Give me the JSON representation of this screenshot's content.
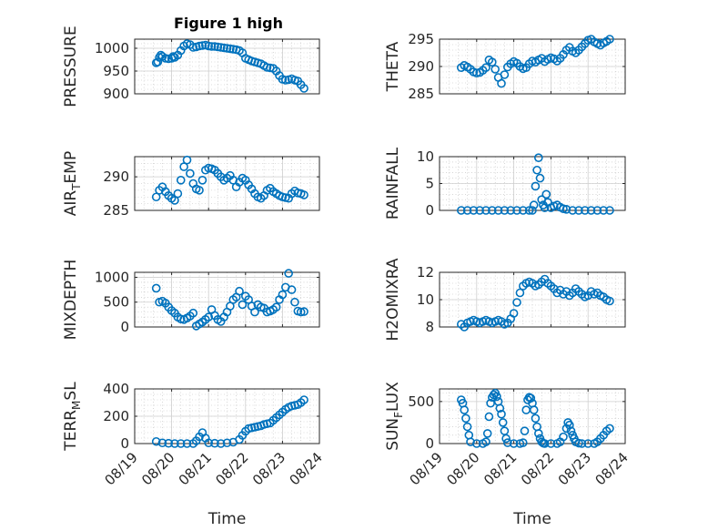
{
  "figure": {
    "title": "Figure 1 high",
    "marker_color": "#0072BD",
    "axis_color": "#262626",
    "grid": true,
    "minor_grid": true
  },
  "x_axis": {
    "type": "date",
    "lim": [
      "08/19",
      "08/24"
    ],
    "ticks": [
      "08/19",
      "08/20",
      "08/21",
      "08/22",
      "08/23",
      "08/24"
    ],
    "label": "Time"
  },
  "chart_data": [
    {
      "type": "scatter",
      "ylabel": "PRESSURE",
      "ylim": [
        900,
        1020
      ],
      "yticks": [
        900,
        950,
        1000
      ],
      "x": [
        "2023-08-19T14:00",
        "2023-08-19T15:00",
        "2023-08-19T16:00",
        "2023-08-19T17:00",
        "2023-08-19T18:00",
        "2023-08-19T20:00",
        "2023-08-19T22:00",
        "2023-08-20T00:00",
        "2023-08-20T01:00",
        "2023-08-20T02:00",
        "2023-08-20T04:00",
        "2023-08-20T06:00",
        "2023-08-20T08:00",
        "2023-08-20T10:00",
        "2023-08-20T12:00",
        "2023-08-20T14:00",
        "2023-08-20T16:00",
        "2023-08-20T18:00",
        "2023-08-20T20:00",
        "2023-08-20T22:00",
        "2023-08-21T00:00",
        "2023-08-21T02:00",
        "2023-08-21T04:00",
        "2023-08-21T06:00",
        "2023-08-21T08:00",
        "2023-08-21T10:00",
        "2023-08-21T12:00",
        "2023-08-21T14:00",
        "2023-08-21T16:00",
        "2023-08-21T18:00",
        "2023-08-21T20:00",
        "2023-08-21T22:00",
        "2023-08-22T00:00",
        "2023-08-22T02:00",
        "2023-08-22T04:00",
        "2023-08-22T06:00",
        "2023-08-22T08:00",
        "2023-08-22T10:00",
        "2023-08-22T12:00",
        "2023-08-22T14:00",
        "2023-08-22T16:00",
        "2023-08-22T18:00",
        "2023-08-22T20:00",
        "2023-08-22T22:00",
        "2023-08-23T00:00",
        "2023-08-23T02:00",
        "2023-08-23T04:00",
        "2023-08-23T06:00",
        "2023-08-23T08:00",
        "2023-08-23T10:00",
        "2023-08-23T12:00",
        "2023-08-23T14:00"
      ],
      "y": [
        968,
        970,
        980,
        985,
        982,
        978,
        977,
        978,
        982,
        980,
        985,
        995,
        1005,
        1010,
        1008,
        1002,
        1003,
        1005,
        1006,
        1007,
        1005,
        1004,
        1004,
        1003,
        1002,
        1001,
        1000,
        999,
        998,
        997,
        995,
        990,
        978,
        975,
        972,
        970,
        968,
        966,
        962,
        958,
        957,
        956,
        950,
        940,
        932,
        930,
        931,
        933,
        930,
        928,
        920,
        912
      ]
    },
    {
      "type": "scatter",
      "ylabel": "THETA",
      "ylim": [
        285,
        295
      ],
      "yticks": [
        285,
        290,
        295
      ],
      "x": [
        "2023-08-19T14:00",
        "2023-08-19T16:00",
        "2023-08-19T18:00",
        "2023-08-19T20:00",
        "2023-08-19T22:00",
        "2023-08-20T00:00",
        "2023-08-20T02:00",
        "2023-08-20T04:00",
        "2023-08-20T06:00",
        "2023-08-20T08:00",
        "2023-08-20T10:00",
        "2023-08-20T12:00",
        "2023-08-20T14:00",
        "2023-08-20T16:00",
        "2023-08-20T18:00",
        "2023-08-20T20:00",
        "2023-08-20T22:00",
        "2023-08-21T00:00",
        "2023-08-21T02:00",
        "2023-08-21T04:00",
        "2023-08-21T06:00",
        "2023-08-21T08:00",
        "2023-08-21T10:00",
        "2023-08-21T12:00",
        "2023-08-21T14:00",
        "2023-08-21T16:00",
        "2023-08-21T18:00",
        "2023-08-21T20:00",
        "2023-08-21T22:00",
        "2023-08-22T00:00",
        "2023-08-22T02:00",
        "2023-08-22T04:00",
        "2023-08-22T06:00",
        "2023-08-22T08:00",
        "2023-08-22T10:00",
        "2023-08-22T12:00",
        "2023-08-22T14:00",
        "2023-08-22T16:00",
        "2023-08-22T18:00",
        "2023-08-22T20:00",
        "2023-08-22T22:00",
        "2023-08-23T00:00",
        "2023-08-23T02:00",
        "2023-08-23T04:00",
        "2023-08-23T06:00",
        "2023-08-23T08:00",
        "2023-08-23T10:00",
        "2023-08-23T12:00",
        "2023-08-23T14:00"
      ],
      "y": [
        289.8,
        290.2,
        289.9,
        289.5,
        289.0,
        288.8,
        288.9,
        289.3,
        289.8,
        291.2,
        290.8,
        289.5,
        288.0,
        286.9,
        288.5,
        289.9,
        290.5,
        290.9,
        290.6,
        290.0,
        289.6,
        289.8,
        290.5,
        291.0,
        290.8,
        291.2,
        291.5,
        290.9,
        291.3,
        291.6,
        291.4,
        291.0,
        291.5,
        292.2,
        293.0,
        293.5,
        292.8,
        292.5,
        293.0,
        293.6,
        294.2,
        294.8,
        295.0,
        294.5,
        294.2,
        293.9,
        294.3,
        294.6,
        295.0
      ]
    },
    {
      "type": "scatter",
      "ylabel": "AIR_TEMP",
      "ylim": [
        285,
        293
      ],
      "yticks": [
        285,
        290
      ],
      "x": [
        "2023-08-19T14:00",
        "2023-08-19T16:00",
        "2023-08-19T18:00",
        "2023-08-19T20:00",
        "2023-08-19T22:00",
        "2023-08-20T00:00",
        "2023-08-20T02:00",
        "2023-08-20T04:00",
        "2023-08-20T06:00",
        "2023-08-20T08:00",
        "2023-08-20T10:00",
        "2023-08-20T12:00",
        "2023-08-20T14:00",
        "2023-08-20T16:00",
        "2023-08-20T18:00",
        "2023-08-20T20:00",
        "2023-08-20T22:00",
        "2023-08-21T00:00",
        "2023-08-21T02:00",
        "2023-08-21T04:00",
        "2023-08-21T06:00",
        "2023-08-21T08:00",
        "2023-08-21T10:00",
        "2023-08-21T12:00",
        "2023-08-21T14:00",
        "2023-08-21T16:00",
        "2023-08-21T18:00",
        "2023-08-21T20:00",
        "2023-08-21T22:00",
        "2023-08-22T00:00",
        "2023-08-22T02:00",
        "2023-08-22T04:00",
        "2023-08-22T06:00",
        "2023-08-22T08:00",
        "2023-08-22T10:00",
        "2023-08-22T12:00",
        "2023-08-22T14:00",
        "2023-08-22T16:00",
        "2023-08-22T18:00",
        "2023-08-22T20:00",
        "2023-08-22T22:00",
        "2023-08-23T00:00",
        "2023-08-23T02:00",
        "2023-08-23T04:00",
        "2023-08-23T06:00",
        "2023-08-23T08:00",
        "2023-08-23T10:00",
        "2023-08-23T12:00",
        "2023-08-23T14:00"
      ],
      "y": [
        287.0,
        288.0,
        288.5,
        287.8,
        287.2,
        286.8,
        286.5,
        287.5,
        289.5,
        291.5,
        292.5,
        290.5,
        289.0,
        288.2,
        288.0,
        289.5,
        291.0,
        291.3,
        291.2,
        291.0,
        290.5,
        290.0,
        289.5,
        289.8,
        290.2,
        289.5,
        288.5,
        289.2,
        289.8,
        289.5,
        288.8,
        288.2,
        287.5,
        287.0,
        286.8,
        287.2,
        288.0,
        288.3,
        287.8,
        287.5,
        287.2,
        287.0,
        286.9,
        286.8,
        287.5,
        287.9,
        287.6,
        287.5,
        287.3
      ]
    },
    {
      "type": "scatter",
      "ylabel": "RAINFALL",
      "ylim": [
        0,
        10
      ],
      "yticks": [
        0,
        5,
        10
      ],
      "x": [
        "2023-08-19T14:00",
        "2023-08-19T18:00",
        "2023-08-19T22:00",
        "2023-08-20T02:00",
        "2023-08-20T06:00",
        "2023-08-20T10:00",
        "2023-08-20T14:00",
        "2023-08-20T18:00",
        "2023-08-20T22:00",
        "2023-08-21T02:00",
        "2023-08-21T06:00",
        "2023-08-21T10:00",
        "2023-08-21T12:00",
        "2023-08-21T13:00",
        "2023-08-21T14:00",
        "2023-08-21T15:00",
        "2023-08-21T16:00",
        "2023-08-21T17:00",
        "2023-08-21T18:00",
        "2023-08-21T19:00",
        "2023-08-21T20:00",
        "2023-08-21T21:00",
        "2023-08-21T22:00",
        "2023-08-22T00:00",
        "2023-08-22T02:00",
        "2023-08-22T04:00",
        "2023-08-22T06:00",
        "2023-08-22T08:00",
        "2023-08-22T10:00",
        "2023-08-22T14:00",
        "2023-08-22T18:00",
        "2023-08-22T22:00",
        "2023-08-23T02:00",
        "2023-08-23T06:00",
        "2023-08-23T10:00",
        "2023-08-23T14:00"
      ],
      "y": [
        0,
        0,
        0,
        0,
        0,
        0,
        0,
        0,
        0,
        0,
        0,
        0,
        0,
        1.0,
        4.5,
        7.5,
        9.8,
        6.0,
        2.0,
        1.0,
        0.5,
        3.0,
        1.5,
        0.5,
        0.8,
        1.0,
        0.6,
        0.3,
        0.2,
        0,
        0,
        0,
        0,
        0,
        0,
        0
      ]
    },
    {
      "type": "scatter",
      "ylabel": "MIXDEPTH",
      "ylim": [
        0,
        1100
      ],
      "yticks": [
        0,
        500,
        1000
      ],
      "x": [
        "2023-08-19T14:00",
        "2023-08-19T16:00",
        "2023-08-19T18:00",
        "2023-08-19T20:00",
        "2023-08-19T22:00",
        "2023-08-20T00:00",
        "2023-08-20T02:00",
        "2023-08-20T04:00",
        "2023-08-20T06:00",
        "2023-08-20T08:00",
        "2023-08-20T10:00",
        "2023-08-20T12:00",
        "2023-08-20T14:00",
        "2023-08-20T16:00",
        "2023-08-20T18:00",
        "2023-08-20T20:00",
        "2023-08-20T22:00",
        "2023-08-21T00:00",
        "2023-08-21T02:00",
        "2023-08-21T04:00",
        "2023-08-21T06:00",
        "2023-08-21T08:00",
        "2023-08-21T10:00",
        "2023-08-21T12:00",
        "2023-08-21T14:00",
        "2023-08-21T16:00",
        "2023-08-21T18:00",
        "2023-08-21T20:00",
        "2023-08-21T22:00",
        "2023-08-22T00:00",
        "2023-08-22T02:00",
        "2023-08-22T04:00",
        "2023-08-22T06:00",
        "2023-08-22T08:00",
        "2023-08-22T10:00",
        "2023-08-22T12:00",
        "2023-08-22T14:00",
        "2023-08-22T16:00",
        "2023-08-22T18:00",
        "2023-08-22T20:00",
        "2023-08-22T22:00",
        "2023-08-23T00:00",
        "2023-08-23T02:00",
        "2023-08-23T04:00",
        "2023-08-23T06:00",
        "2023-08-23T08:00",
        "2023-08-23T10:00",
        "2023-08-23T12:00",
        "2023-08-23T14:00"
      ],
      "y": [
        780,
        500,
        520,
        480,
        400,
        330,
        280,
        200,
        160,
        150,
        180,
        220,
        280,
        20,
        60,
        100,
        150,
        200,
        350,
        230,
        150,
        110,
        200,
        300,
        420,
        550,
        600,
        720,
        450,
        620,
        550,
        420,
        300,
        450,
        400,
        380,
        300,
        320,
        350,
        400,
        550,
        650,
        800,
        1080,
        750,
        500,
        320,
        300,
        310
      ]
    },
    {
      "type": "scatter",
      "ylabel": "H2OMIXRA",
      "ylim": [
        8,
        12
      ],
      "yticks": [
        8,
        10,
        12
      ],
      "x": [
        "2023-08-19T14:00",
        "2023-08-19T16:00",
        "2023-08-19T18:00",
        "2023-08-19T20:00",
        "2023-08-19T22:00",
        "2023-08-20T00:00",
        "2023-08-20T02:00",
        "2023-08-20T04:00",
        "2023-08-20T06:00",
        "2023-08-20T08:00",
        "2023-08-20T10:00",
        "2023-08-20T12:00",
        "2023-08-20T14:00",
        "2023-08-20T16:00",
        "2023-08-20T18:00",
        "2023-08-20T20:00",
        "2023-08-20T22:00",
        "2023-08-21T00:00",
        "2023-08-21T02:00",
        "2023-08-21T04:00",
        "2023-08-21T06:00",
        "2023-08-21T08:00",
        "2023-08-21T10:00",
        "2023-08-21T12:00",
        "2023-08-21T14:00",
        "2023-08-21T16:00",
        "2023-08-21T18:00",
        "2023-08-21T20:00",
        "2023-08-21T22:00",
        "2023-08-22T00:00",
        "2023-08-22T02:00",
        "2023-08-22T04:00",
        "2023-08-22T06:00",
        "2023-08-22T08:00",
        "2023-08-22T10:00",
        "2023-08-22T12:00",
        "2023-08-22T14:00",
        "2023-08-22T16:00",
        "2023-08-22T18:00",
        "2023-08-22T20:00",
        "2023-08-22T22:00",
        "2023-08-23T00:00",
        "2023-08-23T02:00",
        "2023-08-23T04:00",
        "2023-08-23T06:00",
        "2023-08-23T08:00",
        "2023-08-23T10:00",
        "2023-08-23T12:00",
        "2023-08-23T14:00"
      ],
      "y": [
        8.2,
        8.0,
        8.3,
        8.4,
        8.5,
        8.4,
        8.3,
        8.4,
        8.5,
        8.4,
        8.3,
        8.4,
        8.5,
        8.4,
        8.2,
        8.3,
        8.6,
        9.0,
        9.8,
        10.5,
        11.0,
        11.2,
        11.3,
        11.2,
        11.0,
        11.1,
        11.3,
        11.5,
        11.2,
        11.0,
        10.8,
        10.5,
        10.7,
        10.4,
        10.6,
        10.3,
        10.5,
        10.8,
        10.6,
        10.4,
        10.2,
        10.3,
        10.6,
        10.4,
        10.5,
        10.3,
        10.2,
        10.0,
        9.9
      ]
    },
    {
      "type": "scatter",
      "ylabel": "TERR_MSL",
      "ylim": [
        0,
        400
      ],
      "yticks": [
        0,
        200,
        400
      ],
      "x": [
        "2023-08-19T14:00",
        "2023-08-19T18:00",
        "2023-08-19T22:00",
        "2023-08-20T02:00",
        "2023-08-20T06:00",
        "2023-08-20T10:00",
        "2023-08-20T14:00",
        "2023-08-20T16:00",
        "2023-08-20T18:00",
        "2023-08-20T20:00",
        "2023-08-20T22:00",
        "2023-08-21T00:00",
        "2023-08-21T04:00",
        "2023-08-21T08:00",
        "2023-08-21T12:00",
        "2023-08-21T16:00",
        "2023-08-21T20:00",
        "2023-08-21T22:00",
        "2023-08-22T00:00",
        "2023-08-22T02:00",
        "2023-08-22T04:00",
        "2023-08-22T06:00",
        "2023-08-22T08:00",
        "2023-08-22T10:00",
        "2023-08-22T12:00",
        "2023-08-22T14:00",
        "2023-08-22T16:00",
        "2023-08-22T18:00",
        "2023-08-22T20:00",
        "2023-08-22T22:00",
        "2023-08-23T00:00",
        "2023-08-23T02:00",
        "2023-08-23T04:00",
        "2023-08-23T06:00",
        "2023-08-23T08:00",
        "2023-08-23T10:00",
        "2023-08-23T12:00",
        "2023-08-23T14:00"
      ],
      "y": [
        15,
        5,
        2,
        0,
        0,
        0,
        0,
        20,
        50,
        80,
        40,
        5,
        2,
        0,
        5,
        10,
        30,
        60,
        90,
        110,
        115,
        120,
        125,
        130,
        140,
        145,
        150,
        170,
        190,
        210,
        230,
        250,
        265,
        275,
        280,
        285,
        300,
        320
      ]
    },
    {
      "type": "scatter",
      "ylabel": "SUN_FLUX",
      "ylim": [
        0,
        650
      ],
      "yticks": [
        0,
        500
      ],
      "x": [
        "2023-08-19T14:00",
        "2023-08-19T15:00",
        "2023-08-19T16:00",
        "2023-08-19T17:00",
        "2023-08-19T18:00",
        "2023-08-19T19:00",
        "2023-08-19T20:00",
        "2023-08-20T00:00",
        "2023-08-20T04:00",
        "2023-08-20T06:00",
        "2023-08-20T07:00",
        "2023-08-20T08:00",
        "2023-08-20T09:00",
        "2023-08-20T10:00",
        "2023-08-20T11:00",
        "2023-08-20T12:00",
        "2023-08-20T13:00",
        "2023-08-20T14:00",
        "2023-08-20T15:00",
        "2023-08-20T16:00",
        "2023-08-20T17:00",
        "2023-08-20T18:00",
        "2023-08-20T19:00",
        "2023-08-20T20:00",
        "2023-08-21T00:00",
        "2023-08-21T04:00",
        "2023-08-21T06:00",
        "2023-08-21T07:00",
        "2023-08-21T08:00",
        "2023-08-21T09:00",
        "2023-08-21T10:00",
        "2023-08-21T11:00",
        "2023-08-21T12:00",
        "2023-08-21T13:00",
        "2023-08-21T14:00",
        "2023-08-21T15:00",
        "2023-08-21T16:00",
        "2023-08-21T17:00",
        "2023-08-21T18:00",
        "2023-08-21T19:00",
        "2023-08-21T20:00",
        "2023-08-22T00:00",
        "2023-08-22T04:00",
        "2023-08-22T06:00",
        "2023-08-22T08:00",
        "2023-08-22T10:00",
        "2023-08-22T11:00",
        "2023-08-22T12:00",
        "2023-08-22T13:00",
        "2023-08-22T14:00",
        "2023-08-22T15:00",
        "2023-08-22T16:00",
        "2023-08-22T18:00",
        "2023-08-22T20:00",
        "2023-08-23T00:00",
        "2023-08-23T04:00",
        "2023-08-23T06:00",
        "2023-08-23T08:00",
        "2023-08-23T10:00",
        "2023-08-23T12:00",
        "2023-08-23T14:00"
      ],
      "y": [
        520,
        480,
        400,
        300,
        200,
        100,
        20,
        0,
        0,
        20,
        120,
        320,
        480,
        550,
        580,
        600,
        560,
        500,
        420,
        350,
        250,
        150,
        60,
        10,
        0,
        0,
        10,
        150,
        400,
        520,
        550,
        540,
        480,
        400,
        300,
        200,
        120,
        60,
        20,
        5,
        0,
        0,
        0,
        20,
        80,
        180,
        250,
        220,
        150,
        100,
        60,
        20,
        5,
        0,
        0,
        0,
        20,
        60,
        100,
        150,
        180
      ]
    }
  ]
}
